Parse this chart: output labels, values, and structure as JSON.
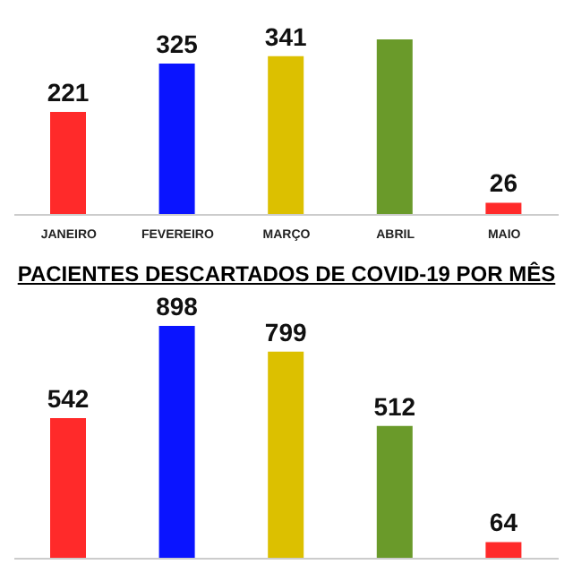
{
  "chart_data": [
    {
      "type": "bar",
      "categories": [
        "JANEIRO",
        "FEVEREIRO",
        "MARÇO",
        "ABRIL",
        "MAIO"
      ],
      "values": [
        221,
        325,
        341,
        377,
        26
      ],
      "value_labels": [
        "221",
        "325",
        "341",
        null,
        "26"
      ],
      "colors": [
        "#ff2a2a",
        "#0a14ff",
        "#dcc000",
        "#6a9a2a",
        "#ff2a2a"
      ],
      "tick_labels": "x"
    },
    {
      "type": "bar",
      "title": "PACIENTES DESCARTADOS DE COVID-19 POR MÊS",
      "categories": [
        null,
        null,
        null,
        null,
        null
      ],
      "values": [
        542,
        898,
        799,
        512,
        64
      ],
      "data_labels": true,
      "colors": [
        "#ff2a2a",
        "#0a14ff",
        "#dcc000",
        "#6a9a2a",
        "#ff2a2a"
      ],
      "tick_labels": false
    }
  ]
}
